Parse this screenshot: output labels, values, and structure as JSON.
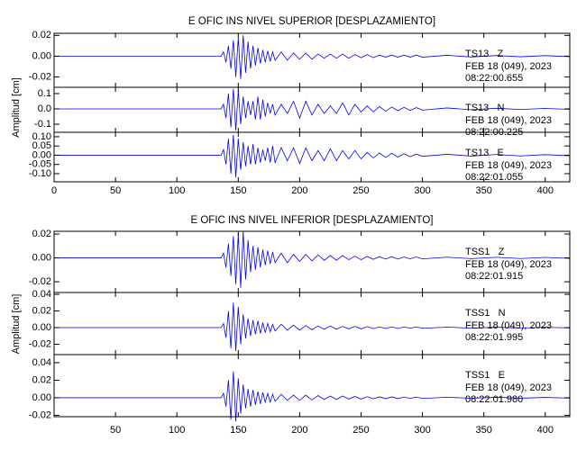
{
  "chart_data": [
    {
      "type": "line",
      "title": "E OFIC INS NIVEL SUPERIOR [DESPLAZAMIENTO]",
      "y_label": "Amplitud [cm]",
      "xlim": [
        0,
        420
      ],
      "xticks": [
        0,
        50,
        100,
        150,
        200,
        250,
        300,
        350,
        400
      ],
      "x": [
        0,
        136,
        138,
        140,
        142,
        144,
        146,
        148,
        150,
        152,
        154,
        156,
        158,
        160,
        162,
        164,
        166,
        168,
        170,
        172,
        174,
        176,
        178,
        180,
        185,
        190,
        195,
        200,
        205,
        210,
        215,
        220,
        225,
        230,
        235,
        240,
        245,
        250,
        255,
        260,
        265,
        270,
        275,
        280,
        285,
        290,
        295,
        300,
        320,
        340,
        360,
        380,
        400,
        420
      ],
      "series": [
        {
          "name": "TS13   Z",
          "date": "FEB 18 (049), 2023",
          "time": "08:22:00.655",
          "color": "#0000ff",
          "ylim": [
            -0.03,
            0.022
          ],
          "yticks": [
            0.02,
            {
              "value": 0,
              "label": "0.00"
            },
            -0.02
          ],
          "values": [
            0,
            0,
            0.004,
            -0.006,
            0.01,
            -0.012,
            0.015,
            -0.02,
            0.018,
            -0.022,
            0.02,
            -0.016,
            0.014,
            -0.012,
            0.01,
            -0.009,
            0.008,
            -0.007,
            0.006,
            -0.006,
            0.005,
            -0.005,
            0.004,
            -0.004,
            0.004,
            -0.004,
            0.003,
            -0.003,
            0.003,
            -0.003,
            0.002,
            -0.002,
            0.002,
            -0.002,
            0.002,
            -0.002,
            0.0015,
            -0.0015,
            0.0015,
            -0.0015,
            0.001,
            -0.001,
            0.001,
            -0.001,
            0.001,
            -0.001,
            0.001,
            -0.001,
            0.0008,
            -0.0008,
            0.0006,
            -0.0006,
            0.0005,
            -0.0005
          ]
        },
        {
          "name": "TS13   N",
          "date": "FEB 18 (049), 2023",
          "time": "08:22:00.225",
          "color": "#0000ff",
          "ylim": [
            -0.153,
            0.141
          ],
          "yticks": [
            0.1,
            {
              "value": 0,
              "label": "0.0"
            },
            -0.1
          ],
          "values": [
            0,
            0,
            0.03,
            -0.06,
            0.1,
            -0.12,
            0.13,
            -0.14,
            0.12,
            -0.1,
            0.08,
            -0.06,
            0.05,
            -0.04,
            0.05,
            -0.07,
            0.08,
            -0.07,
            0.06,
            -0.05,
            0.04,
            -0.03,
            0.03,
            -0.04,
            0.03,
            -0.03,
            0.05,
            -0.06,
            0.05,
            -0.04,
            0.03,
            -0.03,
            0.02,
            -0.03,
            0.04,
            -0.04,
            0.03,
            -0.02,
            0.02,
            -0.02,
            0.015,
            -0.015,
            0.012,
            -0.012,
            0.01,
            -0.01,
            0.008,
            -0.008,
            0.006,
            -0.006,
            0.004,
            -0.004,
            0.003,
            -0.003
          ]
        },
        {
          "name": "TS13   E",
          "date": "FEB 18 (049), 2023",
          "time": "08:22:01.055",
          "color": "#0000ff",
          "ylim": [
            -0.144,
            0.124
          ],
          "yticks": [
            {
              "value": 0.1,
              "label": "0.10"
            },
            0.05,
            {
              "value": 0,
              "label": "0.00"
            },
            -0.05,
            {
              "value": -0.1,
              "label": "-0.10"
            }
          ],
          "values": [
            0,
            0,
            0.03,
            -0.05,
            0.09,
            -0.1,
            0.11,
            -0.12,
            0.09,
            -0.08,
            0.07,
            -0.06,
            0.05,
            -0.05,
            0.06,
            -0.05,
            0.04,
            -0.04,
            0.03,
            -0.03,
            0.04,
            -0.04,
            0.05,
            -0.04,
            0.04,
            -0.03,
            0.04,
            -0.045,
            0.04,
            -0.03,
            0.025,
            -0.03,
            0.035,
            -0.03,
            0.025,
            -0.02,
            0.025,
            -0.02,
            0.015,
            -0.015,
            0.012,
            -0.012,
            0.01,
            -0.01,
            0.008,
            -0.008,
            0.006,
            -0.006,
            0.005,
            -0.005,
            0.004,
            -0.004,
            0.003,
            -0.003
          ]
        }
      ]
    },
    {
      "type": "line",
      "title": "E OFIC INS NIVEL INFERIOR [DESPLAZAMIENTO]",
      "y_label": "Amplitud [cm]",
      "xlim": [
        0,
        420
      ],
      "xticks": [
        50,
        100,
        150,
        200,
        250,
        300,
        350,
        400
      ],
      "x": [
        0,
        136,
        138,
        140,
        142,
        144,
        146,
        148,
        150,
        152,
        154,
        156,
        158,
        160,
        162,
        164,
        166,
        168,
        170,
        172,
        174,
        176,
        178,
        180,
        185,
        190,
        195,
        200,
        205,
        210,
        215,
        220,
        225,
        230,
        235,
        240,
        245,
        250,
        255,
        260,
        265,
        270,
        275,
        280,
        285,
        290,
        295,
        300,
        320,
        340,
        360,
        380,
        400,
        420
      ],
      "series": [
        {
          "name": "TSS1   Z",
          "date": "FEB 18 (049), 2023",
          "time": "08:22:01.915",
          "color": "#0000ff",
          "ylim": [
            -0.029,
            0.0223
          ],
          "yticks": [
            0.02,
            {
              "value": 0,
              "label": "0.00"
            },
            -0.02
          ],
          "values": [
            0,
            0,
            0.004,
            -0.008,
            0.012,
            -0.015,
            0.018,
            -0.022,
            0.02,
            -0.025,
            0.022,
            -0.018,
            0.015,
            -0.012,
            0.01,
            -0.01,
            0.009,
            -0.008,
            0.007,
            -0.006,
            0.006,
            -0.005,
            0.005,
            -0.004,
            0.004,
            -0.004,
            0.003,
            -0.003,
            0.003,
            -0.0025,
            0.0025,
            -0.002,
            0.002,
            -0.002,
            0.002,
            -0.0015,
            0.0015,
            -0.0015,
            0.0012,
            -0.0012,
            0.001,
            -0.001,
            0.001,
            -0.001,
            0.0008,
            -0.0008,
            0.0008,
            -0.0008,
            0.0006,
            -0.0006,
            0.0005,
            -0.0005,
            0.0004,
            -0.0004
          ]
        },
        {
          "name": "TSS1   N",
          "date": "FEB 18 (049), 2023",
          "time": "08:22:01.995",
          "color": "#0000ff",
          "ylim": [
            -0.0324,
            0.0422
          ],
          "yticks": [
            0.04,
            0.02,
            {
              "value": 0,
              "label": "0.00"
            },
            -0.02
          ],
          "values": [
            0,
            0,
            0.005,
            -0.012,
            0.02,
            -0.025,
            0.03,
            -0.028,
            0.025,
            -0.02,
            0.016,
            -0.013,
            0.011,
            -0.01,
            0.009,
            -0.008,
            0.008,
            -0.007,
            0.006,
            -0.006,
            0.005,
            -0.005,
            0.004,
            -0.004,
            0.004,
            -0.003,
            0.003,
            -0.003,
            0.0025,
            -0.0025,
            0.002,
            -0.002,
            0.002,
            -0.002,
            0.0015,
            -0.0015,
            0.0015,
            -0.0015,
            0.0012,
            -0.0012,
            0.001,
            -0.001,
            0.001,
            -0.001,
            0.0008,
            -0.0008,
            0.0008,
            -0.0008,
            0.0006,
            -0.0006,
            0.0005,
            -0.0005,
            0.0004,
            -0.0004
          ]
        },
        {
          "name": "TSS1   E",
          "date": "FEB 18 (049), 2023",
          "time": "08:22:01.980",
          "color": "#0000ff",
          "ylim": [
            -0.0216,
            0.0492
          ],
          "yticks": [
            0.04,
            0.02,
            {
              "value": 0,
              "label": "0.00"
            },
            -0.02
          ],
          "values": [
            0,
            0,
            0.005,
            -0.01,
            0.02,
            -0.025,
            0.03,
            -0.027,
            0.022,
            -0.018,
            0.015,
            -0.012,
            0.01,
            -0.01,
            0.009,
            -0.008,
            0.007,
            -0.007,
            0.006,
            -0.005,
            0.005,
            -0.005,
            0.004,
            -0.004,
            0.004,
            -0.003,
            0.003,
            -0.003,
            0.003,
            -0.0025,
            0.0025,
            -0.002,
            0.002,
            -0.002,
            0.002,
            -0.0015,
            0.0015,
            -0.0015,
            0.0012,
            -0.0012,
            0.001,
            -0.001,
            0.001,
            -0.001,
            0.0008,
            -0.0008,
            0.0008,
            -0.0008,
            0.0006,
            -0.0006,
            0.0005,
            -0.0005,
            0.0004,
            -0.0004
          ]
        }
      ]
    }
  ]
}
